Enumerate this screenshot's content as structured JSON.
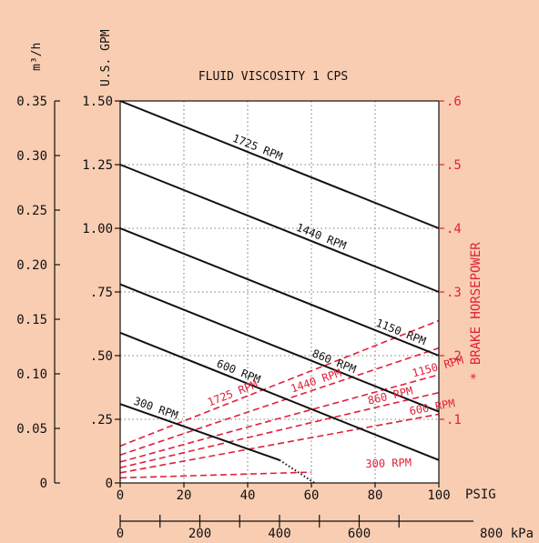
{
  "colors": {
    "background": "#f9cdb2",
    "plot_bg": "#ffffff",
    "ink": "#111111",
    "accent": "#e0203a",
    "grid": "#555555"
  },
  "chart_data": {
    "type": "line",
    "title": "FLUID VISCOSITY 1  CPS",
    "x": {
      "label": "PSIG",
      "range": [
        0,
        100
      ],
      "ticks": [
        0,
        20,
        40,
        60,
        80,
        100
      ],
      "secondary": {
        "label": "800 kPa",
        "range": [
          0,
          800
        ],
        "ticks": [
          0,
          200,
          400,
          600
        ],
        "tick_labels": [
          "0",
          "200",
          "400",
          "600"
        ]
      }
    },
    "y_left": {
      "label": "U.S. GPM",
      "range": [
        0,
        1.5
      ],
      "ticks": [
        0,
        0.25,
        0.5,
        0.75,
        1.0,
        1.25,
        1.5
      ],
      "tick_labels": [
        "0",
        ".25",
        ".50",
        ".75",
        "1.00",
        "1.25",
        "1.50"
      ],
      "secondary": {
        "label": "m³/h",
        "range": [
          0,
          0.35
        ],
        "ticks": [
          0,
          0.05,
          0.1,
          0.15,
          0.2,
          0.25,
          0.3,
          0.35
        ],
        "tick_labels": [
          "0",
          "0.05",
          "0.10",
          "0.15",
          "0.20",
          "0.25",
          "0.30",
          "0.35"
        ]
      }
    },
    "y_right": {
      "label": "* BRAKE HORSEPOWER",
      "range": [
        0,
        0.6
      ],
      "ticks": [
        0.1,
        0.2,
        0.3,
        0.4,
        0.5,
        0.6
      ],
      "tick_labels": [
        ".1",
        ".2",
        ".3",
        ".4",
        ".5",
        ".6"
      ]
    },
    "grid": true,
    "flow_series": [
      {
        "name": "1725 RPM",
        "x": [
          0,
          100
        ],
        "y": [
          1.5,
          1.0
        ]
      },
      {
        "name": "1440 RPM",
        "x": [
          0,
          100
        ],
        "y": [
          1.25,
          0.75
        ]
      },
      {
        "name": "1150 RPM",
        "x": [
          0,
          100
        ],
        "y": [
          1.0,
          0.5
        ]
      },
      {
        "name": "860 RPM",
        "x": [
          0,
          100
        ],
        "y": [
          0.78,
          0.28
        ]
      },
      {
        "name": "600 RPM",
        "x": [
          0,
          100
        ],
        "y": [
          0.59,
          0.09
        ]
      },
      {
        "name": "300 RPM",
        "x": [
          0,
          50,
          61
        ],
        "y": [
          0.31,
          0.09,
          0.0
        ],
        "dotted_from_x": 50
      }
    ],
    "horsepower_series": [
      {
        "name": "1725 RPM",
        "x": [
          0,
          100
        ],
        "y": [
          0.058,
          0.255
        ]
      },
      {
        "name": "1440 RPM",
        "x": [
          0,
          100
        ],
        "y": [
          0.044,
          0.212
        ]
      },
      {
        "name": "1150 RPM",
        "x": [
          0,
          100
        ],
        "y": [
          0.033,
          0.17
        ]
      },
      {
        "name": "860 RPM",
        "x": [
          0,
          100
        ],
        "y": [
          0.024,
          0.142
        ]
      },
      {
        "name": "600 RPM",
        "x": [
          0,
          100
        ],
        "y": [
          0.016,
          0.108
        ]
      },
      {
        "name": "300 RPM",
        "x": [
          0,
          20,
          40,
          60
        ],
        "y": [
          0.008,
          0.011,
          0.014,
          0.017
        ]
      }
    ]
  }
}
